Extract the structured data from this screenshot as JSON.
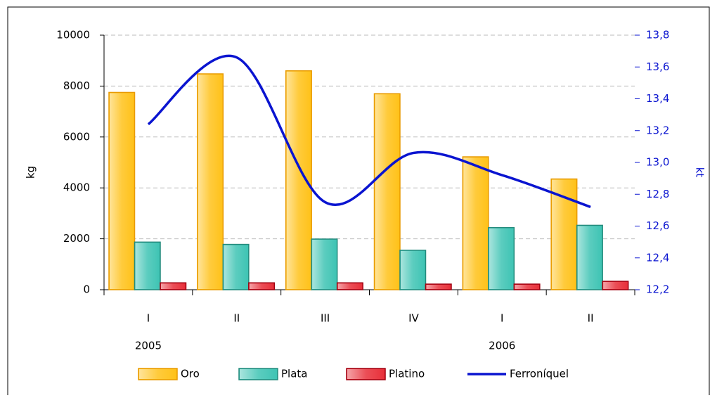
{
  "chart_data": {
    "type": "bar-line",
    "categories": [
      "I",
      "II",
      "III",
      "IV",
      "I",
      "II"
    ],
    "years": [
      "2005",
      null,
      null,
      null,
      "2006",
      null
    ],
    "ylabel": "kg",
    "y2label": "kt",
    "ylim": [
      0,
      10000
    ],
    "yticks": [
      0,
      2000,
      4000,
      6000,
      8000,
      10000
    ],
    "y2lim": [
      12.2,
      13.8
    ],
    "y2ticks": [
      {
        "value": 12.2,
        "label": "12,2"
      },
      {
        "value": 12.4,
        "label": "12,4"
      },
      {
        "value": 12.6,
        "label": "12,6"
      },
      {
        "value": 12.8,
        "label": "12,8"
      },
      {
        "value": 13.0,
        "label": "13,0"
      },
      {
        "value": 13.2,
        "label": "13,2"
      },
      {
        "value": 13.4,
        "label": "13,4"
      },
      {
        "value": 13.6,
        "label": "13,6"
      },
      {
        "value": 13.8,
        "label": "13,8"
      }
    ],
    "grid": true,
    "legend": "bottom",
    "series": [
      {
        "name": "Oro",
        "kind": "bar",
        "color": "#ffc21a",
        "edgecolor": "#e89a00",
        "values": [
          7750,
          8480,
          8600,
          7700,
          5220,
          4350
        ]
      },
      {
        "name": "Plata",
        "kind": "bar",
        "color": "#3fc4b4",
        "edgecolor": "#238a7c",
        "values": [
          1870,
          1780,
          1990,
          1550,
          2440,
          2530
        ]
      },
      {
        "name": "Platino",
        "kind": "bar",
        "color": "#e8303a",
        "edgecolor": "#a00010",
        "values": [
          270,
          270,
          270,
          220,
          220,
          330
        ]
      },
      {
        "name": "Ferroníquel",
        "kind": "line",
        "axis": "y2",
        "color": "#0a14d0",
        "values": [
          13.24,
          13.66,
          12.75,
          13.06,
          12.92,
          12.72
        ]
      }
    ]
  }
}
